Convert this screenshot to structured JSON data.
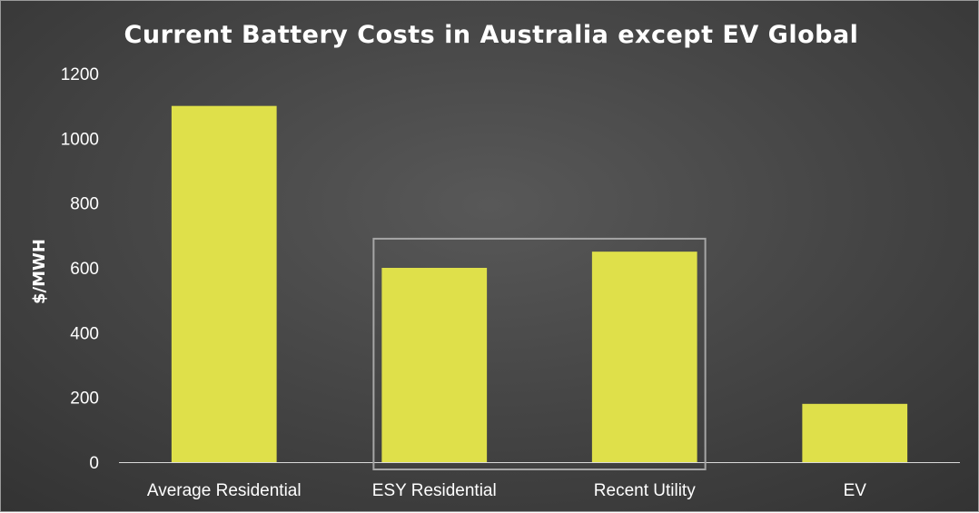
{
  "chart_data": {
    "type": "bar",
    "title": "Current Battery Costs in Australia except EV Global",
    "xlabel": "",
    "ylabel": "$/MWH",
    "categories": [
      "Average Residential",
      "ESY Residential",
      "Recent Utility",
      "EV"
    ],
    "values": [
      1100,
      600,
      650,
      180
    ],
    "ylim": [
      0,
      1200
    ],
    "yticks": [
      0,
      200,
      400,
      600,
      800,
      1000,
      1200
    ],
    "grid": false,
    "legend": "none",
    "highlight_box": {
      "categories": [
        "ESY Residential",
        "Recent Utility"
      ],
      "ymax": 690
    },
    "colors": {
      "bar": "#dfe04a",
      "axis": "#d9d9d9",
      "box": "#a6a6a6",
      "text": "#ffffff"
    }
  }
}
